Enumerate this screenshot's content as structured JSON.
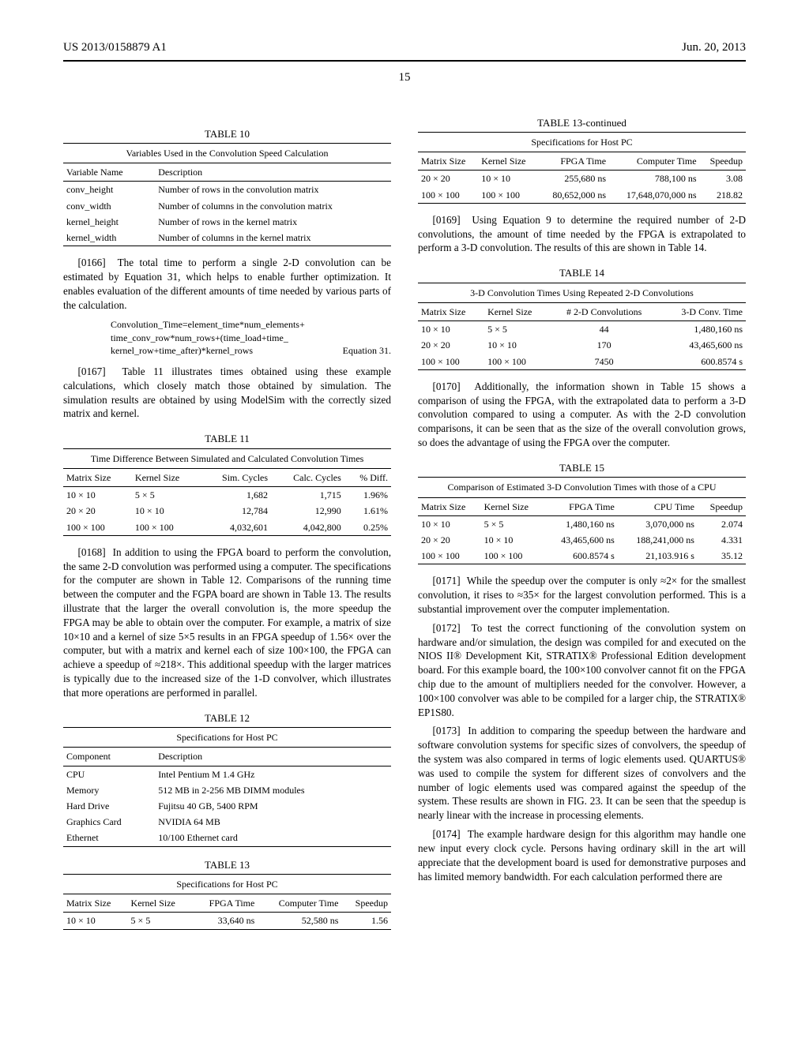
{
  "header": {
    "pub_number": "US 2013/0158879 A1",
    "pub_date": "Jun. 20, 2013",
    "page_number": "15"
  },
  "table10": {
    "label": "TABLE 10",
    "caption": "Variables Used in the Convolution Speed Calculation",
    "columns": [
      "Variable Name",
      "Description"
    ],
    "rows": [
      [
        "conv_height",
        "Number of rows in the convolution matrix"
      ],
      [
        "conv_width",
        "Number of columns in the convolution matrix"
      ],
      [
        "kernel_height",
        "Number of rows in the kernel matrix"
      ],
      [
        "kernel_width",
        "Number of columns in the kernel matrix"
      ]
    ]
  },
  "para0166": {
    "num": "[0166]",
    "text": "The total time to perform a single 2-D convolution can be estimated by Equation 31, which helps to enable further optimization. It enables evaluation of the different amounts of time needed by various parts of the calculation."
  },
  "equation31": {
    "line1": "Convolution_Time=element_time*num_elements+",
    "line2": "time_conv_row*num_rows+(time_load+time_",
    "line3": "kernel_row+time_after)*kernel_rows",
    "label": "Equation 31."
  },
  "para0167": {
    "num": "[0167]",
    "text": "Table 11 illustrates times obtained using these example calculations, which closely match those obtained by simulation. The simulation results are obtained by using ModelSim with the correctly sized matrix and kernel."
  },
  "table11": {
    "label": "TABLE 11",
    "caption": "Time Difference Between Simulated and Calculated Convolution Times",
    "columns": [
      "Matrix Size",
      "Kernel Size",
      "Sim. Cycles",
      "Calc. Cycles",
      "% Diff."
    ],
    "rows": [
      [
        "10 × 10",
        "5 × 5",
        "1,682",
        "1,715",
        "1.96%"
      ],
      [
        "20 × 20",
        "10 × 10",
        "12,784",
        "12,990",
        "1.61%"
      ],
      [
        "100 × 100",
        "100 × 100",
        "4,032,601",
        "4,042,800",
        "0.25%"
      ]
    ]
  },
  "para0168": {
    "num": "[0168]",
    "text": "In addition to using the FPGA board to perform the convolution, the same 2-D convolution was performed using a computer. The specifications for the computer are shown in Table 12. Comparisons of the running time between the computer and the FGPA board are shown in Table 13. The results illustrate that the larger the overall convolution is, the more speedup the FPGA may be able to obtain over the computer. For example, a matrix of size 10×10 and a kernel of size 5×5 results in an FPGA speedup of 1.56× over the computer, but with a matrix and kernel each of size 100×100, the FPGA can achieve a speedup of ≈218×. This additional speedup with the larger matrices is typically due to the increased size of the 1-D convolver, which illustrates that more operations are performed in parallel."
  },
  "table12": {
    "label": "TABLE 12",
    "caption": "Specifications for Host PC",
    "columns": [
      "Component",
      "Description"
    ],
    "rows": [
      [
        "CPU",
        "Intel Pentium M 1.4 GHz"
      ],
      [
        "Memory",
        "512 MB in 2-256 MB DIMM modules"
      ],
      [
        "Hard Drive",
        "Fujitsu 40 GB, 5400 RPM"
      ],
      [
        "Graphics Card",
        "NVIDIA 64 MB"
      ],
      [
        "Ethernet",
        "10/100 Ethernet card"
      ]
    ]
  },
  "table13": {
    "label": "TABLE 13",
    "caption": "Specifications for Host PC",
    "columns": [
      "Matrix Size",
      "Kernel Size",
      "FPGA Time",
      "Computer Time",
      "Speedup"
    ],
    "rows": [
      [
        "10 × 10",
        "5 × 5",
        "33,640  ns",
        "52,580  ns",
        "1.56"
      ]
    ]
  },
  "table13cont": {
    "label": "TABLE 13-continued",
    "caption": "Specifications for Host PC",
    "columns": [
      "Matrix Size",
      "Kernel Size",
      "FPGA Time",
      "Computer Time",
      "Speedup"
    ],
    "rows": [
      [
        "20 × 20",
        "10 × 10",
        "255,680  ns",
        "788,100  ns",
        "3.08"
      ],
      [
        "100 × 100",
        "100 × 100",
        "80,652,000  ns",
        "17,648,070,000  ns",
        "218.82"
      ]
    ]
  },
  "para0169": {
    "num": "[0169]",
    "text": "Using Equation 9 to determine the required number of 2-D convolutions, the amount of time needed by the FPGA is extrapolated to perform a 3-D convolution. The results of this are shown in Table 14."
  },
  "table14": {
    "label": "TABLE 14",
    "caption": "3-D Convolution Times Using Repeated 2-D Convolutions",
    "columns": [
      "Matrix Size",
      "Kernel Size",
      "# 2-D Convolutions",
      "3-D Conv. Time"
    ],
    "rows": [
      [
        "10 × 10",
        "5 × 5",
        "44",
        "1,480,160  ns"
      ],
      [
        "20 × 20",
        "10 × 10",
        "170",
        "43,465,600  ns"
      ],
      [
        "100 × 100",
        "100 × 100",
        "7450",
        "600.8574  s"
      ]
    ]
  },
  "para0170": {
    "num": "[0170]",
    "text": "Additionally, the information shown in Table 15 shows a comparison of using the FPGA, with the extrapolated data to perform a 3-D convolution compared to using a computer. As with the 2-D convolution comparisons, it can be seen that as the size of the overall convolution grows, so does the advantage of using the FPGA over the computer."
  },
  "table15": {
    "label": "TABLE 15",
    "caption": "Comparison of Estimated 3-D Convolution Times with those of a CPU",
    "columns": [
      "Matrix Size",
      "Kernel Size",
      "FPGA Time",
      "CPU Time",
      "Speedup"
    ],
    "rows": [
      [
        "10 × 10",
        "5 × 5",
        "1,480,160  ns",
        "3,070,000  ns",
        "2.074"
      ],
      [
        "20 × 20",
        "10 × 10",
        "43,465,600  ns",
        "188,241,000  ns",
        "4.331"
      ],
      [
        "100 × 100",
        "100 × 100",
        "600.8574  s",
        "21,103.916  s",
        "35.12"
      ]
    ]
  },
  "para0171": {
    "num": "[0171]",
    "text": "While the speedup over the computer is only ≈2× for the smallest convolution, it rises to ≈35× for the largest convolution performed. This is a substantial improvement over the computer implementation."
  },
  "para0172": {
    "num": "[0172]",
    "text": "To test the correct functioning of the convolution system on hardware and/or simulation, the design was compiled for and executed on the NIOS II® Development Kit, STRATIX® Professional Edition development board. For this example board, the 100×100 convolver cannot fit on the FPGA chip due to the amount of multipliers needed for the convolver. However, a 100×100 convolver was able to be compiled for a larger chip, the STRATIX® EP1S80."
  },
  "para0173": {
    "num": "[0173]",
    "text": "In addition to comparing the speedup between the hardware and software convolution systems for specific sizes of convolvers, the speedup of the system was also compared in terms of logic elements used. QUARTUS® was used to compile the system for different sizes of convolvers and the number of logic elements used was compared against the speedup of the system. These results are shown in FIG. 23. It can be seen that the speedup is nearly linear with the increase in processing elements."
  },
  "para0174": {
    "num": "[0174]",
    "text": "The example hardware design for this algorithm may handle one new input every clock cycle. Persons having ordinary skill in the art will appreciate that the development board is used for demonstrative purposes and has limited memory bandwidth. For each calculation performed there are"
  }
}
